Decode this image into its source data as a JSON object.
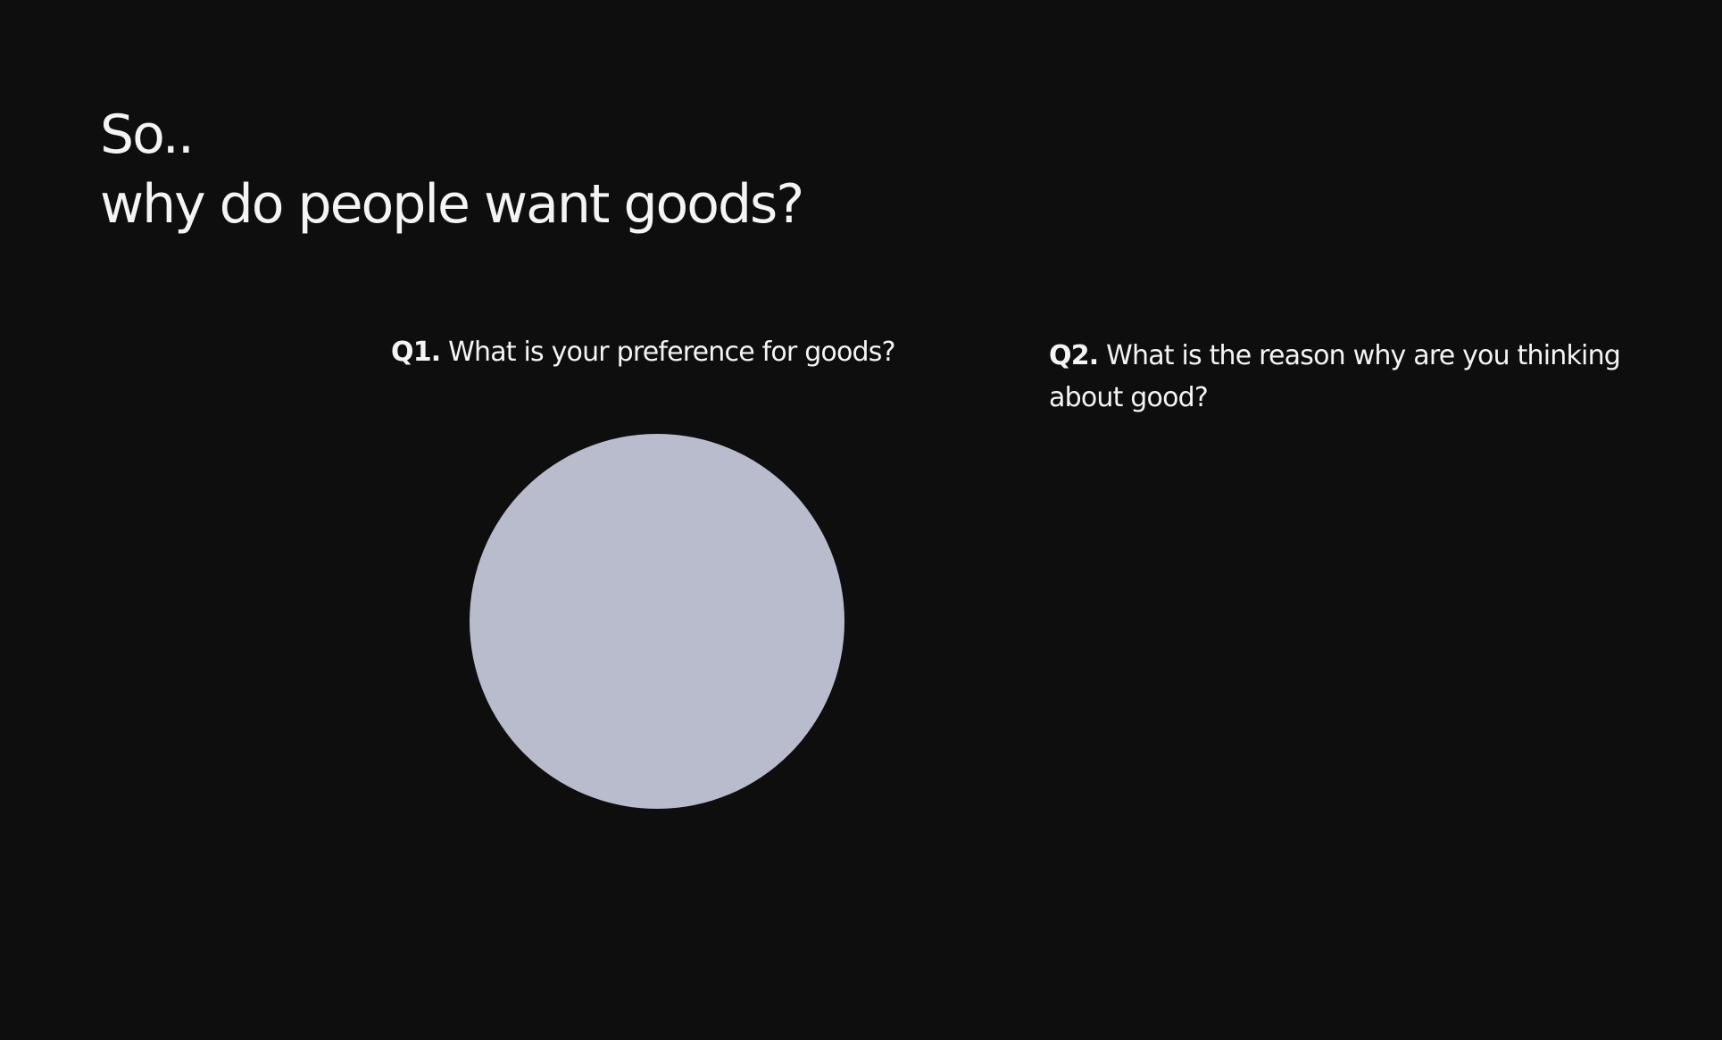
{
  "header": {
    "title_line1": "So..",
    "title_line2": "why do people want goods?"
  },
  "questions": [
    {
      "number": "Q1.",
      "text": "What is your preference for goods?"
    },
    {
      "number": "Q2.",
      "text": "What is the reason why are you thinking about good?"
    }
  ]
}
